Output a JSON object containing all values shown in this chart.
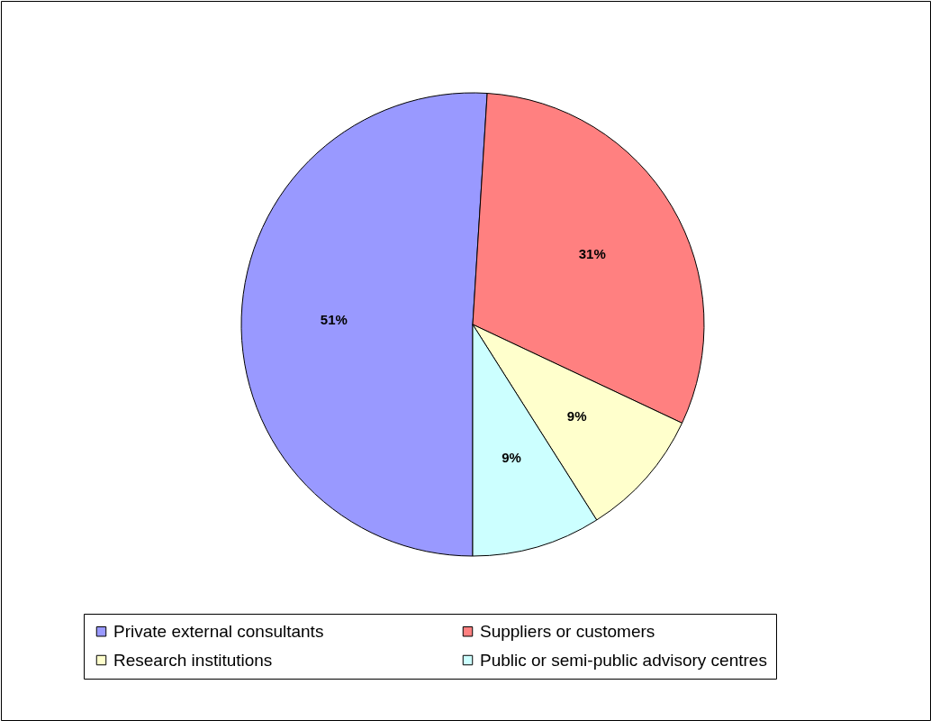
{
  "chart_data": {
    "type": "pie",
    "categories": [
      "Private external consultants",
      "Suppliers or customers",
      "Research institutions",
      "Public or semi-public advisory centres"
    ],
    "values": [
      51,
      31,
      9,
      9
    ],
    "colors": [
      "#9999ff",
      "#ff8080",
      "#ffffcc",
      "#ccffff"
    ],
    "value_labels": [
      "51%",
      "31%",
      "9%",
      "9%"
    ],
    "legend": "bottom"
  }
}
